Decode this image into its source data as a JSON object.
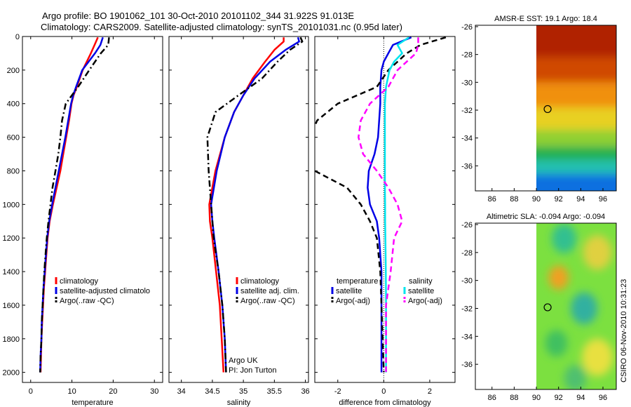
{
  "title": {
    "line1": "Argo profile: BO 1901062_101 30-Oct-2010 20101102_344 31.922S 91.013E",
    "line2": "Climatology: CARS2009. Satellite-adjusted climatology: synTS_20101031.nc (0.95d later)"
  },
  "side_stamp": "CSIRO 06-Nov-2010 10:31:23",
  "colors": {
    "climatology": "#ff0000",
    "satellite": "#0000e6",
    "satellite_sal": "#00e5ee",
    "argo": "#000000",
    "argo_sal": "#ff00ff",
    "marker": "#000000"
  },
  "chart_data": [
    {
      "id": "temperature",
      "type": "line",
      "xlabel": "temperature",
      "xlim": [
        -2,
        32
      ],
      "xticks": [
        0,
        10,
        20,
        30
      ],
      "ylim": [
        2060,
        0
      ],
      "yticks": [
        0,
        200,
        400,
        600,
        800,
        1000,
        1200,
        1400,
        1600,
        1800,
        2000
      ],
      "depth": [
        5,
        50,
        100,
        200,
        300,
        350,
        400,
        500,
        600,
        700,
        800,
        900,
        1000,
        1100,
        1200,
        1300,
        1400,
        1500,
        1600,
        1700,
        1800,
        1900,
        2000
      ],
      "series": [
        {
          "name": "climatology",
          "style": "solid",
          "color": "climatology",
          "values": [
            16.3,
            15.5,
            14.6,
            12.6,
            11.2,
            10.4,
            9.9,
            9.3,
            8.6,
            7.9,
            7.2,
            6.3,
            5.4,
            4.6,
            4.1,
            3.8,
            3.5,
            3.2,
            3.0,
            2.8,
            2.6,
            2.5,
            2.4
          ]
        },
        {
          "name": "satellite-adjusted climatology",
          "style": "solid",
          "color": "satellite",
          "values": [
            17.5,
            16.9,
            15.6,
            12.5,
            11.0,
            10.3,
            9.8,
            9.1,
            8.4,
            7.6,
            6.8,
            6.0,
            5.2,
            4.5,
            4.0,
            3.7,
            3.4,
            3.1,
            2.9,
            2.7,
            2.6,
            2.4,
            2.3
          ]
        },
        {
          "name": "Argo(..raw -QC)",
          "style": "dashdot",
          "color": "argo",
          "values": [
            19.0,
            18.8,
            17.0,
            14.2,
            11.5,
            10.0,
            8.5,
            7.6,
            7.2,
            6.7,
            6.0,
            5.3,
            4.8,
            4.3,
            3.9,
            3.6,
            3.3,
            3.1,
            2.9,
            2.7,
            2.6,
            2.4,
            2.3
          ]
        }
      ],
      "legend": [
        "climatology",
        "satellite-adjusted climatolo",
        "Argo(..raw -QC)"
      ]
    },
    {
      "id": "salinity",
      "type": "line",
      "xlabel": "salinity",
      "xlim": [
        33.8,
        36.05
      ],
      "xticks": [
        34,
        34.5,
        35,
        35.5,
        36
      ],
      "xticklabels": [
        "34",
        "34.5",
        "35",
        "35.5",
        "36"
      ],
      "ylim": [
        2060,
        0
      ],
      "depth": [
        5,
        30,
        80,
        150,
        250,
        350,
        450,
        600,
        800,
        1000,
        1100,
        1200,
        1400,
        1600,
        1800,
        2000
      ],
      "series": [
        {
          "name": "climatology",
          "style": "solid",
          "color": "climatology",
          "values": [
            35.65,
            35.65,
            35.5,
            35.35,
            35.15,
            35.0,
            34.85,
            34.7,
            34.55,
            34.45,
            34.46,
            34.5,
            34.56,
            34.62,
            34.65,
            34.68
          ]
        },
        {
          "name": "satellite adj. clim.",
          "style": "solid",
          "color": "satellite",
          "values": [
            35.88,
            35.9,
            35.68,
            35.43,
            35.18,
            35.0,
            34.85,
            34.7,
            34.57,
            34.48,
            34.5,
            34.53,
            34.6,
            34.66,
            34.7,
            34.72
          ]
        },
        {
          "name": "Argo(..raw -QC)",
          "style": "dashdot",
          "color": "argo",
          "values": [
            35.92,
            35.95,
            35.75,
            35.55,
            35.3,
            34.92,
            34.55,
            34.42,
            34.44,
            34.48,
            34.5,
            34.52,
            34.6,
            34.66,
            34.7,
            34.72
          ]
        }
      ],
      "legend": [
        "climatology",
        "satellite adj. clim.",
        "Argo(..raw -QC)"
      ],
      "annotation": [
        "Argo UK",
        "PI: Jon Turton"
      ]
    },
    {
      "id": "difference",
      "type": "line",
      "xlabel": "difference from climatology",
      "xlim": [
        -3.0,
        3.1
      ],
      "xticks": [
        -2,
        0,
        2
      ],
      "ylim": [
        2060,
        0
      ],
      "depth": [
        5,
        50,
        100,
        150,
        200,
        300,
        400,
        500,
        600,
        700,
        800,
        900,
        1000,
        1100,
        1200,
        1400,
        1600,
        1800,
        2000
      ],
      "series": [
        {
          "name": "temperature satellite",
          "style": "solid",
          "color": "satellite",
          "values": [
            1.2,
            0.4,
            0.2,
            0.0,
            -0.1,
            -0.15,
            -0.15,
            -0.2,
            -0.25,
            -0.4,
            -0.65,
            -0.7,
            -0.6,
            -0.3,
            -0.2,
            -0.1,
            -0.1,
            -0.1,
            -0.1
          ]
        },
        {
          "name": "temperature Argo(-adj)",
          "style": "dashed",
          "color": "argo",
          "values": [
            2.7,
            1.6,
            1.0,
            0.6,
            0.2,
            -0.3,
            -2.0,
            -2.9,
            -3.2,
            -3.2,
            -3.0,
            -1.6,
            -1.0,
            -0.6,
            -0.3,
            -0.15,
            -0.1,
            -0.05,
            0.0
          ]
        },
        {
          "name": "salinity satellite",
          "style": "solid",
          "color": "satellite_sal",
          "values": [
            1.1,
            0.6,
            0.8,
            0.45,
            0.25,
            0.1,
            0.05,
            0.05,
            0.05,
            0.05,
            0.05,
            0.05,
            0.06,
            0.06,
            0.07,
            0.09,
            0.1,
            0.1,
            0.1
          ]
        },
        {
          "name": "salinity Argo(-adj)",
          "style": "dashed",
          "color": "argo_sal",
          "values": [
            1.5,
            1.5,
            1.4,
            1.0,
            0.6,
            0.2,
            -0.6,
            -1.0,
            -1.1,
            -0.9,
            -0.3,
            0.2,
            0.6,
            0.8,
            0.45,
            0.3,
            0.1,
            0.1,
            0.1
          ]
        }
      ],
      "legend_temperature": {
        "title": "temperature",
        "items": [
          "satellite",
          "Argo(-adj)"
        ]
      },
      "legend_salinity": {
        "title": "salinity",
        "items": [
          "satellite",
          "Argo(-adj)"
        ]
      }
    },
    {
      "id": "sst_map",
      "type": "heatmap",
      "title": "AMSR-E SST: 19.1  Argo: 18.4",
      "xlim": [
        84.5,
        97.2
      ],
      "ylim": [
        -37.8,
        -25.9
      ],
      "xticks": [
        86,
        88,
        90,
        92,
        94,
        96
      ],
      "yticks": [
        -26,
        -28,
        -30,
        -32,
        -34,
        -36
      ],
      "data_xlim": [
        90,
        97.2
      ],
      "argo_position": {
        "lon": 91.013,
        "lat": -31.922
      },
      "color_bands": [
        {
          "lat_top": -25.9,
          "lat_bottom": -28.2,
          "color": "#b02000"
        },
        {
          "lat_top": -28.2,
          "lat_bottom": -30.0,
          "color": "#d04a00"
        },
        {
          "lat_top": -30.0,
          "lat_bottom": -31.8,
          "color": "#f09010"
        },
        {
          "lat_top": -31.8,
          "lat_bottom": -33.4,
          "color": "#e8d020"
        },
        {
          "lat_top": -33.4,
          "lat_bottom": -34.6,
          "color": "#90d030"
        },
        {
          "lat_top": -34.6,
          "lat_bottom": -35.6,
          "color": "#20b050"
        },
        {
          "lat_top": -35.6,
          "lat_bottom": -36.6,
          "color": "#20c0b0"
        },
        {
          "lat_top": -36.6,
          "lat_bottom": -37.8,
          "color": "#1070e0"
        }
      ]
    },
    {
      "id": "sla_map",
      "type": "heatmap",
      "title": "Altimetric SLA: -0.094  Argo: -0.094",
      "xlim": [
        84.5,
        97.2
      ],
      "ylim": [
        -37.8,
        -25.9
      ],
      "xticks": [
        86,
        88,
        90,
        92,
        94,
        96
      ],
      "yticks": [
        -26,
        -28,
        -30,
        -32,
        -34,
        -36
      ],
      "data_xlim": [
        90,
        97.2
      ],
      "argo_position": {
        "lon": 91.013,
        "lat": -31.922
      },
      "base_color": "#7ce040",
      "blobs": [
        {
          "lon": 92.5,
          "lat": -27.0,
          "r": 1.1,
          "color": "#30c090"
        },
        {
          "lon": 95.5,
          "lat": -28.0,
          "r": 1.3,
          "color": "#e0d040"
        },
        {
          "lon": 92.0,
          "lat": -29.8,
          "r": 0.9,
          "color": "#f0a020"
        },
        {
          "lon": 94.3,
          "lat": -32.0,
          "r": 1.2,
          "color": "#30b0a0"
        },
        {
          "lon": 95.5,
          "lat": -35.5,
          "r": 1.4,
          "color": "#e8e040"
        },
        {
          "lon": 91.8,
          "lat": -34.5,
          "r": 1.0,
          "color": "#40c060"
        },
        {
          "lon": 93.5,
          "lat": -37.0,
          "r": 1.0,
          "color": "#50c070"
        }
      ]
    }
  ]
}
